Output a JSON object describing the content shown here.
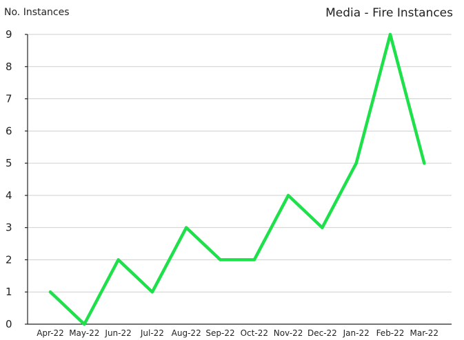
{
  "chart_data": {
    "type": "line",
    "title": "Media - Fire Instances",
    "ylabel": "No. Instances",
    "xlabel": "",
    "categories": [
      "Apr-22",
      "May-22",
      "Jun-22",
      "Jul-22",
      "Aug-22",
      "Sep-22",
      "Oct-22",
      "Nov-22",
      "Dec-22",
      "Jan-22",
      "Feb-22",
      "Mar-22"
    ],
    "series": [
      {
        "values": [
          1,
          0,
          2,
          1,
          3,
          2,
          2,
          4,
          3,
          5,
          9,
          5
        ],
        "color": "#1ee04a"
      }
    ],
    "ylim": [
      0,
      9
    ],
    "yticks": [
      0,
      1,
      2,
      3,
      4,
      5,
      6,
      7,
      8,
      9
    ],
    "grid": true,
    "legend": "none"
  }
}
